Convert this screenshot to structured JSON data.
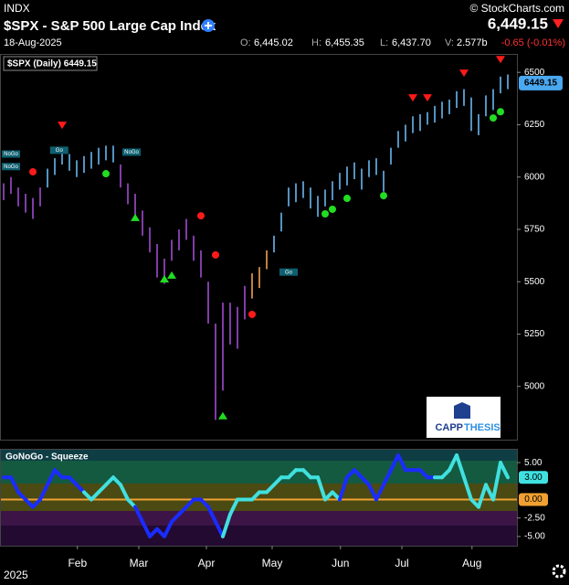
{
  "header": {
    "exchange": "INDX",
    "title": "$SPX - S&P 500 Large Cap Index",
    "date": "18-Aug-2025",
    "copyright": "© StockCharts.com",
    "last": "6,449.15",
    "open_label": "O:",
    "open": "6,445.02",
    "high_label": "H:",
    "high": "6,455.35",
    "low_label": "L:",
    "low": "6,437.70",
    "volume_label": "V:",
    "volume": "2.577b",
    "change": "-0.65 (-0.01%)"
  },
  "logo": {
    "top": "CAPP",
    "bottom": "THESIS"
  },
  "chart_data": [
    {
      "type": "ohlc",
      "legend": "$SPX (Daily) 6449.15",
      "ylim": [
        4750,
        6575
      ],
      "yticks": [
        5000,
        5250,
        5500,
        5750,
        6000,
        6250,
        6500
      ],
      "last_value": 6449.15,
      "last_color": "#4aa8f0",
      "xticks": [
        {
          "value": 10.1,
          "label": "Feb"
        },
        {
          "value": 18.5,
          "label": "Mar"
        },
        {
          "value": 27.75,
          "label": "Apr"
        },
        {
          "value": 36.75,
          "label": "May"
        },
        {
          "value": 46.1,
          "label": "Jun"
        },
        {
          "value": 54.5,
          "label": "Jul"
        },
        {
          "value": 64.1,
          "label": "Aug"
        }
      ],
      "year_label": "2025",
      "high": [
        5970,
        6000,
        5950,
        5920,
        5900,
        5950,
        6040,
        6090,
        6140,
        6110,
        6080,
        6100,
        6120,
        6140,
        6150,
        6150,
        6060,
        5970,
        5920,
        5840,
        5760,
        5680,
        5610,
        5700,
        5750,
        5800,
        5720,
        5650,
        5500,
        5300,
        5400,
        5400,
        5380,
        5480,
        5540,
        5570,
        5650,
        5720,
        5830,
        5950,
        5970,
        5980,
        5950,
        5910,
        5940,
        5980,
        6020,
        6050,
        6070,
        6040,
        6080,
        6090,
        6030,
        6140,
        6220,
        6250,
        6290,
        6300,
        6310,
        6340,
        6360,
        6370,
        6410,
        6420,
        6380,
        6300,
        6390,
        6420,
        6480,
        6490
      ],
      "low": [
        5890,
        5920,
        5860,
        5830,
        5800,
        5860,
        5950,
        6010,
        6060,
        6030,
        6000,
        6020,
        6040,
        6060,
        6080,
        6070,
        5950,
        5870,
        5800,
        5720,
        5640,
        5520,
        5490,
        5600,
        5650,
        5700,
        5600,
        5520,
        5300,
        4840,
        4980,
        5200,
        5180,
        5320,
        5420,
        5470,
        5560,
        5640,
        5740,
        5860,
        5880,
        5900,
        5850,
        5810,
        5860,
        5890,
        5940,
        5960,
        5990,
        5940,
        6000,
        6010,
        5930,
        6060,
        6140,
        6170,
        6210,
        6220,
        6250,
        6260,
        6280,
        6300,
        6330,
        6340,
        6220,
        6200,
        6290,
        6320,
        6400,
        6420
      ],
      "colors": [
        "#a04bd0",
        "#a04bd0",
        "#a04bd0",
        "#a04bd0",
        "#a04bd0",
        "#a04bd0",
        "#69b7f0",
        "#69b7f0",
        "#69b7f0",
        "#69b7f0",
        "#69b7f0",
        "#69b7f0",
        "#69b7f0",
        "#69b7f0",
        "#69b7f0",
        "#69b7f0",
        "#a04bd0",
        "#a04bd0",
        "#a04bd0",
        "#a04bd0",
        "#a04bd0",
        "#a04bd0",
        "#a04bd0",
        "#a04bd0",
        "#a04bd0",
        "#a04bd0",
        "#a04bd0",
        "#a04bd0",
        "#a04bd0",
        "#a04bd0",
        "#a04bd0",
        "#a04bd0",
        "#a04bd0",
        "#a04bd0",
        "#f0a050",
        "#f0a050",
        "#f0a050",
        "#69b7f0",
        "#69b7f0",
        "#69b7f0",
        "#69b7f0",
        "#69b7f0",
        "#69b7f0",
        "#69b7f0",
        "#69b7f0",
        "#69b7f0",
        "#69b7f0",
        "#69b7f0",
        "#69b7f0",
        "#69b7f0",
        "#69b7f0",
        "#69b7f0",
        "#69b7f0",
        "#69b7f0",
        "#69b7f0",
        "#69b7f0",
        "#69b7f0",
        "#69b7f0",
        "#69b7f0",
        "#69b7f0",
        "#69b7f0",
        "#69b7f0",
        "#69b7f0",
        "#69b7f0",
        "#69b7f0",
        "#69b7f0",
        "#69b7f0",
        "#69b7f0",
        "#69b7f0",
        "#69b7f0"
      ],
      "markers": [
        {
          "kind": "triangle-down",
          "color": "#ff1a1a",
          "index": 8,
          "value": 6247
        },
        {
          "kind": "triangle-down",
          "color": "#ff1a1a",
          "index": 56,
          "value": 6378
        },
        {
          "kind": "triangle-down",
          "color": "#ff1a1a",
          "index": 58,
          "value": 6378
        },
        {
          "kind": "triangle-down",
          "color": "#ff1a1a",
          "index": 63,
          "value": 6496
        },
        {
          "kind": "triangle-down",
          "color": "#ff1a1a",
          "index": 68,
          "value": 6561
        },
        {
          "kind": "dot",
          "color": "#ff1a1a",
          "index": 4,
          "value": 6025
        },
        {
          "kind": "dot",
          "color": "#ff1a1a",
          "index": 27,
          "value": 5815
        },
        {
          "kind": "dot",
          "color": "#ff1a1a",
          "index": 29,
          "value": 5628
        },
        {
          "kind": "dot",
          "color": "#ff1a1a",
          "index": 34,
          "value": 5344
        },
        {
          "kind": "dot",
          "color": "#22dd22",
          "index": 14,
          "value": 6016
        },
        {
          "kind": "dot",
          "color": "#22dd22",
          "index": 44,
          "value": 5824
        },
        {
          "kind": "dot",
          "color": "#22dd22",
          "index": 45,
          "value": 5846
        },
        {
          "kind": "dot",
          "color": "#22dd22",
          "index": 47,
          "value": 5898
        },
        {
          "kind": "dot",
          "color": "#22dd22",
          "index": 52,
          "value": 5911
        },
        {
          "kind": "dot",
          "color": "#22dd22",
          "index": 67,
          "value": 6282
        },
        {
          "kind": "dot",
          "color": "#22dd22",
          "index": 68,
          "value": 6312
        },
        {
          "kind": "triangle-up",
          "color": "#22dd22",
          "index": 18,
          "value": 5807
        },
        {
          "kind": "triangle-up",
          "color": "#22dd22",
          "index": 22,
          "value": 5514
        },
        {
          "kind": "triangle-up",
          "color": "#22dd22",
          "index": 23,
          "value": 5532
        },
        {
          "kind": "triangle-up",
          "color": "#22dd22",
          "index": 30,
          "value": 4860
        }
      ],
      "annotations": [
        {
          "text": "NoGo",
          "index": 1,
          "value": 6110
        },
        {
          "text": "NoGo",
          "index": 1,
          "value": 6050
        },
        {
          "text": "Go",
          "index": 7.6,
          "value": 6128
        },
        {
          "text": "NoGo",
          "index": 17.5,
          "value": 6119
        },
        {
          "text": "Go",
          "index": 39,
          "value": 5546
        }
      ]
    },
    {
      "type": "oscillator",
      "title": "GoNoGo - Squeeze",
      "ylim": [
        -6,
        6.5
      ],
      "yticks": [
        {
          "value": 5,
          "label": "5.00"
        },
        {
          "value": -2.5,
          "label": "-2.50"
        },
        {
          "value": -5,
          "label": "-5.00"
        }
      ],
      "last_value": {
        "value": 3,
        "label": "3.00"
      },
      "zero_line": {
        "value": 0,
        "label": "0.00"
      },
      "values": [
        3,
        3,
        1,
        0,
        -1,
        0,
        2,
        4,
        3,
        3,
        2,
        1,
        0,
        1,
        2,
        3,
        2,
        0,
        -1,
        -3,
        -5,
        -4,
        -5,
        -3,
        -2,
        -1,
        0,
        0,
        -1,
        -3,
        -5,
        -2,
        0,
        0,
        0,
        1,
        1,
        2,
        3,
        3,
        4,
        4,
        3,
        3,
        0,
        1,
        0,
        3,
        4,
        3,
        2,
        0,
        2,
        4,
        6,
        4,
        4,
        4,
        3,
        3,
        3,
        4,
        6,
        3,
        0,
        -1,
        2,
        0,
        5,
        3
      ],
      "colors": [
        "#1a2cff",
        "#1a2cff",
        "#1a2cff",
        "#1a2cff",
        "#1a2cff",
        "#1a2cff",
        "#1a2cff",
        "#1a2cff",
        "#1a2cff",
        "#1a2cff",
        "#1a2cff",
        "#1a2cff",
        "#40e0e0",
        "#40e0e0",
        "#40e0e0",
        "#40e0e0",
        "#40e0e0",
        "#40e0e0",
        "#40e0e0",
        "#1a2cff",
        "#1a2cff",
        "#1a2cff",
        "#1a2cff",
        "#1a2cff",
        "#1a2cff",
        "#1a2cff",
        "#1a2cff",
        "#1a2cff",
        "#1a2cff",
        "#1a2cff",
        "#1a2cff",
        "#40e0e0",
        "#40e0e0",
        "#40e0e0",
        "#40e0e0",
        "#40e0e0",
        "#40e0e0",
        "#40e0e0",
        "#40e0e0",
        "#40e0e0",
        "#40e0e0",
        "#40e0e0",
        "#40e0e0",
        "#40e0e0",
        "#40e0e0",
        "#40e0e0",
        "#40e0e0",
        "#1a2cff",
        "#1a2cff",
        "#1a2cff",
        "#1a2cff",
        "#1a2cff",
        "#1a2cff",
        "#1a2cff",
        "#1a2cff",
        "#1a2cff",
        "#1a2cff",
        "#1a2cff",
        "#1a2cff",
        "#1a2cff",
        "#40e0e0",
        "#40e0e0",
        "#40e0e0",
        "#40e0e0",
        "#40e0e0",
        "#40e0e0",
        "#40e0e0",
        "#40e0e0",
        "#40e0e0",
        "#40e0e0"
      ],
      "zero_color": "#f0a030",
      "last_color": "#40e0e0"
    }
  ]
}
